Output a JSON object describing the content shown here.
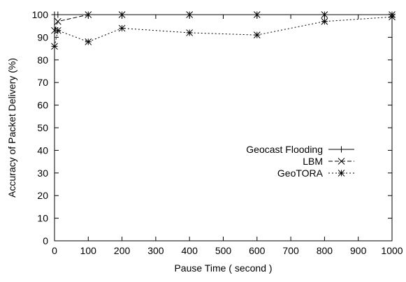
{
  "chart_data": {
    "type": "line",
    "xlabel": "Pause Time ( second )",
    "ylabel": "Accuracy of Packet Delivery (%)",
    "xlim": [
      0,
      1000
    ],
    "ylim": [
      0,
      100
    ],
    "xticks": [
      0,
      100,
      200,
      300,
      400,
      500,
      600,
      700,
      800,
      900,
      1000
    ],
    "yticks": [
      0,
      10,
      20,
      30,
      40,
      50,
      60,
      70,
      80,
      90,
      100
    ],
    "grid": false,
    "legend_position": "right-center",
    "series": [
      {
        "name": "Geocast Flooding",
        "line_style": "solid",
        "marker": "plus",
        "x": [
          0,
          10,
          100,
          200,
          400,
          600,
          800,
          1000
        ],
        "y": [
          100,
          100,
          100,
          100,
          100,
          100,
          100,
          100
        ]
      },
      {
        "name": "LBM",
        "line_style": "dashed",
        "marker": "cross",
        "x": [
          0,
          10,
          100,
          200,
          400,
          600,
          800,
          1000
        ],
        "y": [
          93,
          97,
          100,
          100,
          100,
          100,
          100,
          100
        ]
      },
      {
        "name": "GeoTORA",
        "line_style": "dotted",
        "marker": "asterisk",
        "x": [
          0,
          10,
          100,
          200,
          400,
          600,
          800,
          1000
        ],
        "y": [
          86,
          93,
          88,
          94,
          92,
          91,
          97,
          99
        ]
      }
    ]
  }
}
